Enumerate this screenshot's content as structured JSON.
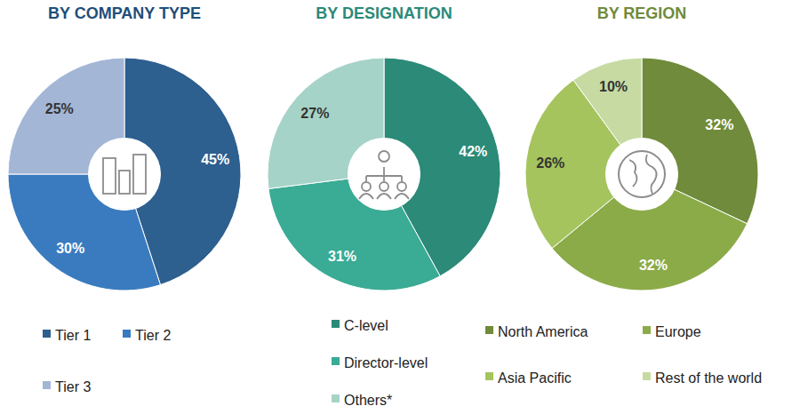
{
  "chart_data": [
    {
      "type": "pie",
      "title": "BY COMPANY TYPE",
      "categories": [
        "Tier 1",
        "Tier 2",
        "Tier 3"
      ],
      "values": [
        45,
        30,
        25
      ],
      "value_labels": [
        "45%",
        "30%",
        "25%"
      ],
      "colors": [
        "#2d5f8f",
        "#3a7bbf",
        "#a3b6d6"
      ],
      "data_labels": true,
      "legend": "bottom"
    },
    {
      "type": "pie",
      "title": "BY DESIGNATION",
      "categories": [
        "C-level",
        "Director-level",
        "Others*"
      ],
      "values": [
        42,
        31,
        27
      ],
      "value_labels": [
        "42%",
        "31%",
        "27%"
      ],
      "colors": [
        "#2b8a78",
        "#3aab94",
        "#a6d3c7"
      ],
      "data_labels": true,
      "legend": "bottom"
    },
    {
      "type": "pie",
      "title": "BY REGION",
      "categories": [
        "North America",
        "Europe",
        "Asia Pacific",
        "Rest of the world"
      ],
      "values": [
        32,
        32,
        26,
        10
      ],
      "value_labels": [
        "32%",
        "32%",
        "26%",
        "10%"
      ],
      "colors": [
        "#6f8b3b",
        "#8bab48",
        "#a5c45e",
        "#c6daa2"
      ],
      "data_labels": true,
      "legend": "bottom"
    }
  ]
}
